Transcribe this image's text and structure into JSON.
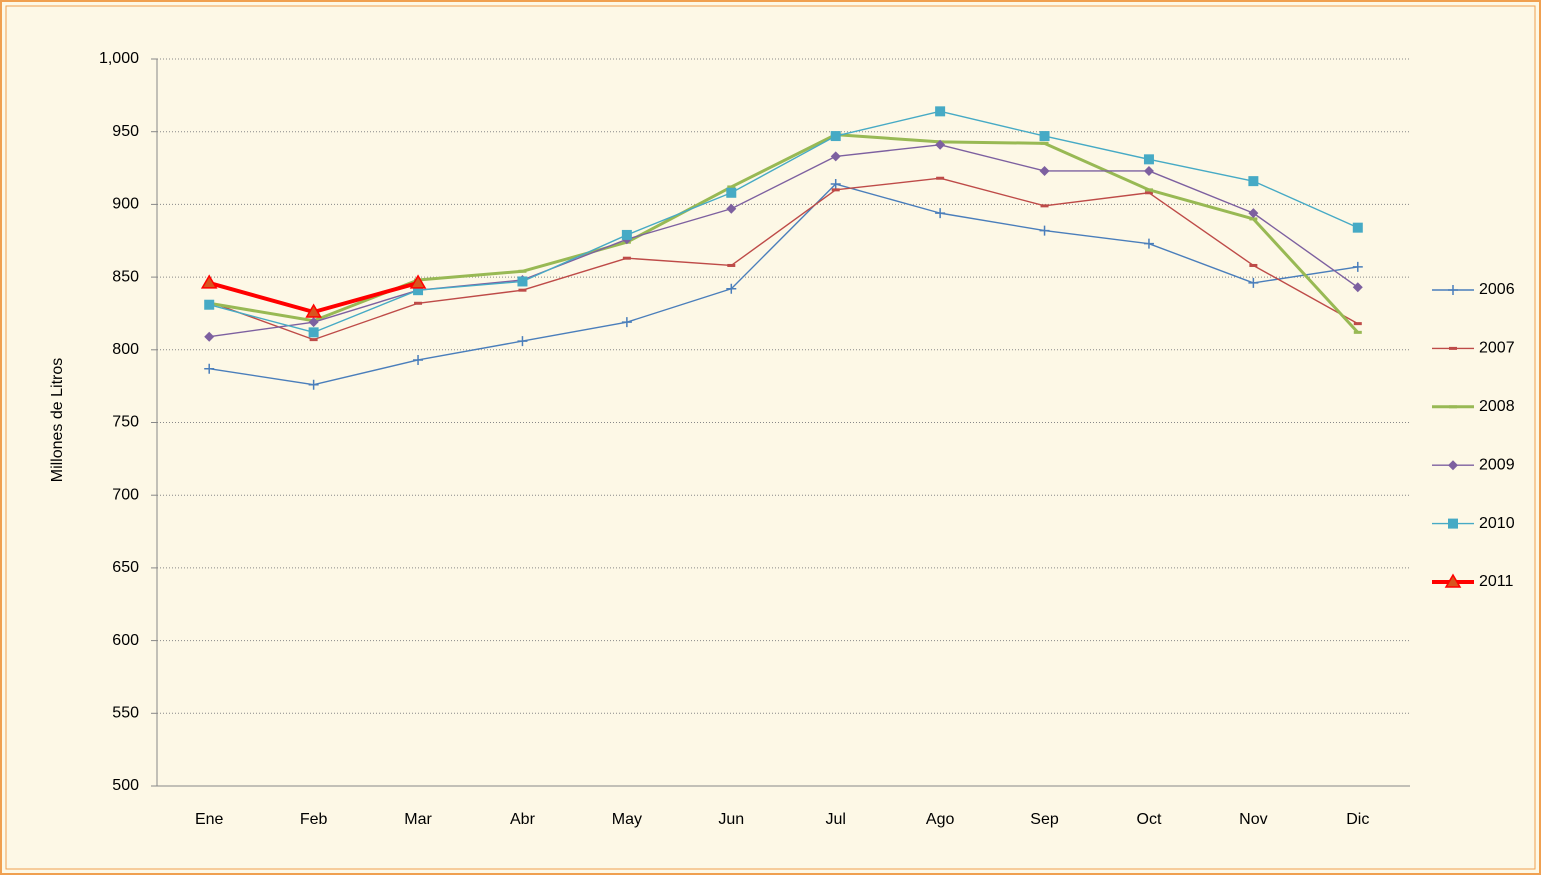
{
  "chart_data": {
    "type": "line",
    "y_label": "Millones de Litros",
    "categories": [
      "Ene",
      "Feb",
      "Mar",
      "Abr",
      "May",
      "Jun",
      "Jul",
      "Ago",
      "Sep",
      "Oct",
      "Nov",
      "Dic"
    ],
    "series": [
      {
        "name": "2006",
        "color": "#4a7ebb",
        "marker": "plus",
        "values": [
          787,
          776,
          793,
          806,
          819,
          842,
          914,
          894,
          882,
          873,
          846,
          857
        ]
      },
      {
        "name": "2007",
        "color": "#be4b48",
        "marker": "dash",
        "values": [
          833,
          807,
          832,
          841,
          863,
          858,
          910,
          918,
          899,
          908,
          858,
          818
        ]
      },
      {
        "name": "2008",
        "color": "#98b954",
        "marker": "dash",
        "values": [
          832,
          820,
          848,
          854,
          874,
          912,
          948,
          943,
          942,
          910,
          890,
          812
        ]
      },
      {
        "name": "2009",
        "color": "#7d60a0",
        "marker": "diamond",
        "values": [
          809,
          819,
          841,
          848,
          876,
          897,
          933,
          941,
          923,
          923,
          894,
          843
        ]
      },
      {
        "name": "2010",
        "color": "#46aac5",
        "marker": "square",
        "values": [
          831,
          812,
          841,
          847,
          879,
          908,
          947,
          964,
          947,
          931,
          916,
          884
        ]
      },
      {
        "name": "2011",
        "color": "#ff0000",
        "marker": "triangle",
        "values": [
          846,
          826,
          846,
          null,
          null,
          null,
          null,
          null,
          null,
          null,
          null,
          null
        ]
      }
    ],
    "ylim": [
      500,
      1000
    ],
    "yticks": [
      500,
      550,
      600,
      650,
      700,
      750,
      800,
      850,
      900,
      950,
      {
        "value": 1000,
        "label": "1,000"
      }
    ],
    "grid": true,
    "legend": "right"
  }
}
